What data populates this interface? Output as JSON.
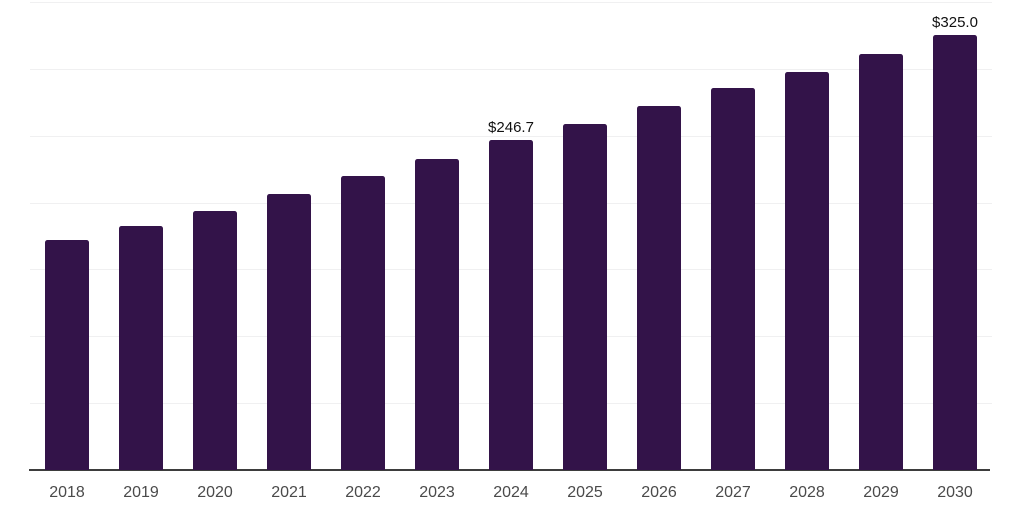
{
  "chart_data": {
    "type": "bar",
    "title": "",
    "xlabel": "",
    "ylabel": "",
    "categories": [
      "2018",
      "2019",
      "2020",
      "2021",
      "2022",
      "2023",
      "2024",
      "2025",
      "2026",
      "2027",
      "2028",
      "2029",
      "2030"
    ],
    "values": [
      171.8,
      182.3,
      194.1,
      206.5,
      219.6,
      232.6,
      246.7,
      258.6,
      272.2,
      285.6,
      298.0,
      311.1,
      325.0
    ],
    "annotations": [
      {
        "category": "2024",
        "label": "$246.7"
      },
      {
        "category": "2030",
        "label": "$325.0"
      }
    ],
    "ylim": [
      0,
      350
    ],
    "grid_step": 50,
    "grid": "horizontal-only",
    "legend": "none",
    "y_axis_labels": "hidden",
    "bar_color": "#331349",
    "axis_line_color": "#3d3d3d",
    "gridline_color": "#f0f0f1",
    "tick_label_color": "#4a4a4a",
    "annotation_color": "#111111",
    "background_color": "#ffffff"
  }
}
